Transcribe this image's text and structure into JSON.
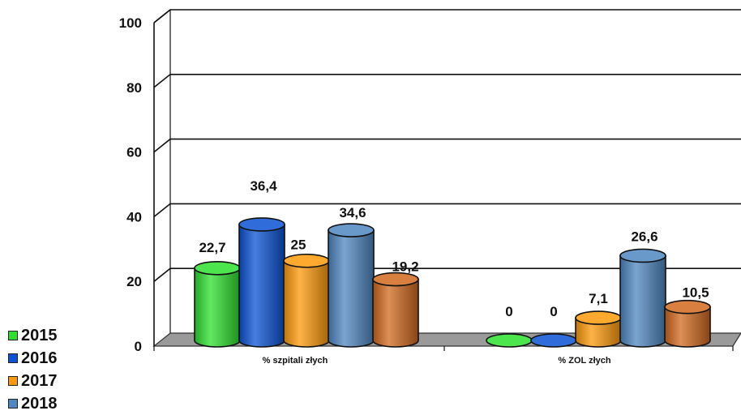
{
  "chart_data": {
    "type": "bar",
    "categories": [
      "% szpitali złych",
      "% ZOL złych"
    ],
    "series": [
      {
        "name": "2015",
        "values": [
          22.7,
          0
        ],
        "labels": [
          "22,7",
          "0"
        ],
        "color": "#2ee02e"
      },
      {
        "name": "2016",
        "values": [
          36.4,
          0
        ],
        "labels": [
          "36,4",
          "0"
        ],
        "color": "#0b53d4"
      },
      {
        "name": "2017",
        "values": [
          25,
          7.1
        ],
        "labels": [
          "25",
          "7,1"
        ],
        "color": "#ff9a0a"
      },
      {
        "name": "2018",
        "values": [
          34.6,
          26.6
        ],
        "labels": [
          "34,6",
          "26,6"
        ],
        "color": "#4f87c2"
      },
      {
        "name": "",
        "values": [
          19.2,
          10.5
        ],
        "labels": [
          "19,2",
          "10,5"
        ],
        "color": "#d2691e"
      }
    ],
    "ylim": [
      0,
      100
    ],
    "yticks": [
      "0",
      "20",
      "40",
      "60",
      "80",
      "100"
    ],
    "grid": true,
    "legend_position": "bottom-left"
  }
}
